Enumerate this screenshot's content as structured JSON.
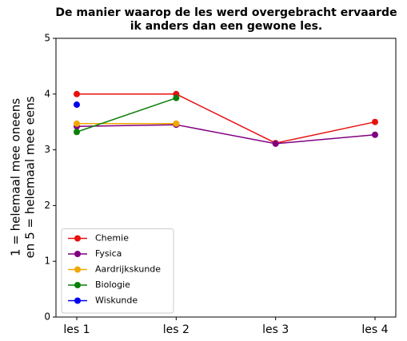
{
  "chart_data": {
    "type": "line",
    "title": [
      "De manier waarop de les werd overgebracht ervaarde",
      "ik anders dan een gewone les."
    ],
    "y_label": [
      "1 = helemaal mee oneens",
      "en 5 = helemaal mee eens"
    ],
    "categories": [
      "les 1",
      "les 2",
      "les 3",
      "les 4"
    ],
    "series": [
      {
        "name": "Chemie",
        "color": "#e8100f",
        "values": [
          4,
          4,
          3.12,
          3.5
        ]
      },
      {
        "name": "Fysica",
        "color": "#800080",
        "values": [
          3.42,
          3.45,
          3.11,
          3.27
        ]
      },
      {
        "name": "Aardrijkskunde",
        "color": "#f0a800",
        "values": [
          3.47,
          3.47,
          null,
          null
        ]
      },
      {
        "name": "Biologie",
        "color": "#0a800a",
        "values": [
          3.32,
          3.93,
          null,
          null
        ]
      },
      {
        "name": "Wiskunde",
        "color": "#0000f0",
        "values": [
          3.81,
          null,
          null,
          null
        ]
      }
    ],
    "ylim": [
      0,
      5
    ],
    "yticks": [
      0,
      1,
      2,
      3,
      4,
      5
    ],
    "legend": "lower left"
  }
}
